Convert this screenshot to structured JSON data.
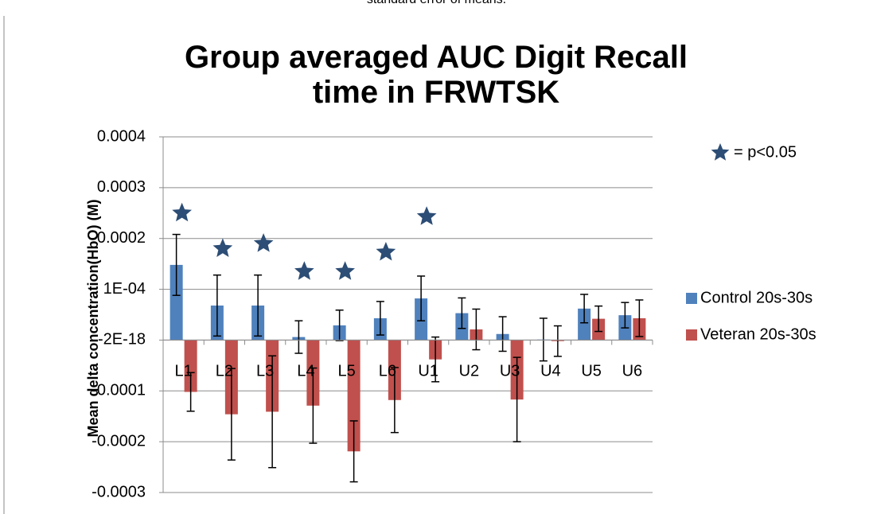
{
  "chart_data": {
    "type": "bar",
    "caption": "standard error of means.",
    "title": "Group averaged AUC Digit Recall time in FRWTSK",
    "y_label": "Mean delta concentration(HbO) (M)",
    "categories": [
      "L1",
      "L2",
      "L3",
      "L4",
      "L5",
      "L6",
      "U1",
      "U2",
      "U3",
      "U4",
      "U5",
      "U6"
    ],
    "series": [
      {
        "name": "Control 20s-30s",
        "color": "#4f81bd",
        "values": [
          0.000148,
          6.8e-05,
          6.8e-05,
          6e-06,
          2.9e-05,
          4.3e-05,
          8.2e-05,
          5.3e-05,
          1.2e-05,
          1e-06,
          6.2e-05,
          4.9e-05
        ],
        "errors": [
          6e-05,
          6e-05,
          6e-05,
          3.2e-05,
          3e-05,
          3.3e-05,
          4.4e-05,
          3e-05,
          3.4e-05,
          4.2e-05,
          2.8e-05,
          2.5e-05
        ]
      },
      {
        "name": "Veteran 20s-30s",
        "color": "#c0504d",
        "values": [
          -0.000102,
          -0.000146,
          -0.000141,
          -0.000129,
          -0.000219,
          -0.000118,
          -3.8e-05,
          2.1e-05,
          -0.000117,
          -2e-06,
          4.2e-05,
          4.3e-05
        ],
        "errors": [
          3.8e-05,
          9e-05,
          0.00011,
          7.4e-05,
          6e-05,
          6.4e-05,
          4.4e-05,
          4e-05,
          8.3e-05,
          3e-05,
          2.5e-05,
          3.6e-05
        ]
      }
    ],
    "significance": {
      "label": "= p<0.05",
      "color": "#2c4d75",
      "values": [
        0.00025,
        0.00018,
        0.00019,
        0.000135,
        0.000135,
        0.000173,
        0.000243,
        null,
        null,
        null,
        null,
        null
      ]
    },
    "ylim": [
      -0.0003,
      0.0004
    ],
    "yticks": [
      0.0004,
      0.0003,
      0.0002,
      {
        "value": 0.0001,
        "label": "1E-04"
      },
      {
        "value": -2e-18,
        "label": "-2E-18"
      },
      -0.0001,
      -0.0002,
      -0.0003
    ],
    "grid": true,
    "legend": "right"
  }
}
